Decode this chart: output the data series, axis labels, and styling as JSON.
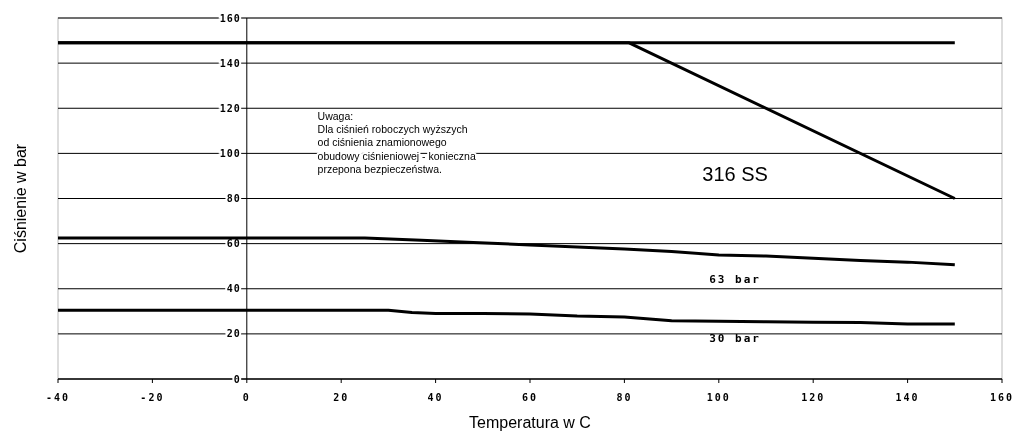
{
  "chart_data": {
    "type": "line",
    "xlabel": "Temperatura w C",
    "ylabel": "Ciśnienie w bar",
    "xlim": [
      -40,
      160
    ],
    "ylim": [
      0,
      160
    ],
    "xticks": [
      -40,
      -20,
      0,
      20,
      40,
      60,
      80,
      100,
      120,
      140,
      160
    ],
    "yticks": [
      0,
      20,
      40,
      60,
      80,
      100,
      120,
      140,
      160
    ],
    "grid": "y",
    "marker": "none",
    "line_style": "solid",
    "series": [
      {
        "color": "#000000",
        "x": [
          -40,
          150
        ],
        "values": [
          149,
          149
        ]
      },
      {
        "name": "316 SS",
        "color": "#000000",
        "x": [
          -40,
          81,
          150
        ],
        "values": [
          149,
          149,
          80
        ]
      },
      {
        "name": "63 bar",
        "color": "#000000",
        "x": [
          -40,
          25,
          37,
          48,
          60,
          70,
          80,
          90,
          100,
          110,
          120,
          130,
          140,
          150
        ],
        "values": [
          62.5,
          62.5,
          61.5,
          60.5,
          59.4,
          58.5,
          57.6,
          56.5,
          55,
          54.5,
          53.5,
          52.5,
          51.8,
          50.6
        ]
      },
      {
        "name": "30 bar",
        "color": "#000000",
        "x": [
          -40,
          30,
          35,
          40,
          50,
          60,
          70,
          80,
          90,
          100,
          110,
          120,
          130,
          140,
          150
        ],
        "values": [
          30.5,
          30.5,
          29.5,
          29,
          29,
          28.8,
          27.9,
          27.5,
          25.8,
          25.6,
          25.4,
          25.2,
          25,
          24.4,
          24.4
        ]
      }
    ],
    "annotations": [
      "Uwaga:\nDla ciśnień roboczych wyższych\nod ciśnienia znamionowego\nobudowy ciśnieniowej - konieczna\nprzepona bezpieczeństwa."
    ]
  }
}
